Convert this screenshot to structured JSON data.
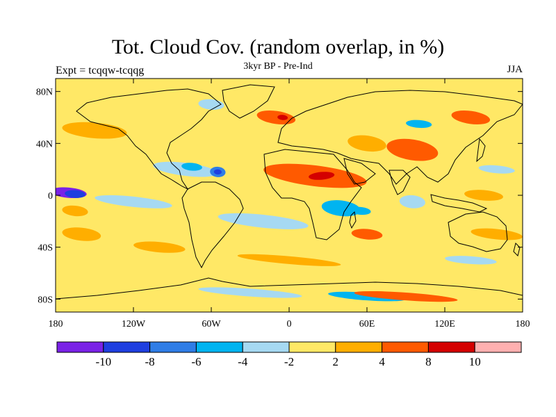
{
  "title": "Tot. Cloud Cov. (random overlap, in %)",
  "subtitle": "3kyr BP - Pre-Ind",
  "left_label": "Expt = tcqqw-tcqqg",
  "right_label": "JJA",
  "lat_ticks": [
    {
      "value": 80,
      "label": "80N"
    },
    {
      "value": 40,
      "label": "40N"
    },
    {
      "value": 0,
      "label": "0"
    },
    {
      "value": -40,
      "label": "40S"
    },
    {
      "value": -80,
      "label": "80S"
    }
  ],
  "lon_ticks": [
    {
      "value": -180,
      "label": "180"
    },
    {
      "value": -120,
      "label": "120W"
    },
    {
      "value": -60,
      "label": "60W"
    },
    {
      "value": 0,
      "label": "0"
    },
    {
      "value": 60,
      "label": "60E"
    },
    {
      "value": 120,
      "label": "120E"
    },
    {
      "value": 180,
      "label": "180"
    }
  ],
  "colorbar": {
    "colors": [
      "#7a22e6",
      "#1f3fe0",
      "#2f7de6",
      "#00b4f0",
      "#a6d9f2",
      "#ffe866",
      "#ffae00",
      "#ff5a00",
      "#d40000",
      "#ffb0b0"
    ],
    "labels": [
      "-10",
      "-8",
      "-6",
      "-4",
      "-2",
      "2",
      "4",
      "8",
      "10"
    ]
  },
  "colors": {
    "background_field": "#ffe866",
    "coastline": "#000000"
  }
}
